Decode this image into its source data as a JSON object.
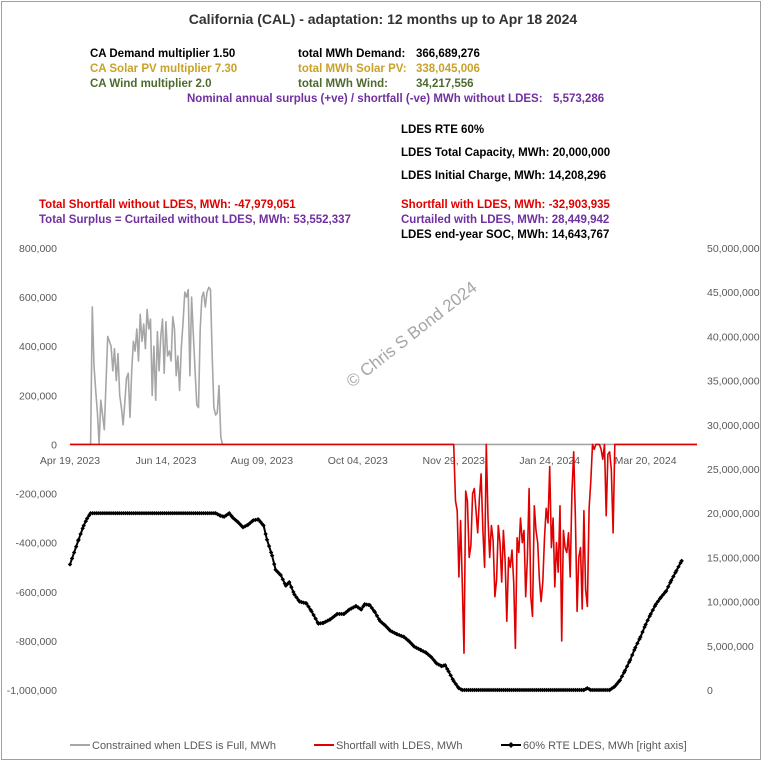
{
  "title": "California (CAL) - adaptation:  12 months up to  Apr 18 2024",
  "info": {
    "demand_mult": {
      "label": "CA Demand multiplier  1.50",
      "color": "#000000"
    },
    "solar_mult": {
      "label": "CA Solar PV multiplier  7.30",
      "color": "#C9A227"
    },
    "wind_mult": {
      "label": "CA Wind multiplier  2.0",
      "color": "#4E6B2E"
    },
    "demand_total": {
      "label": "total MWh Demand:",
      "value": "366,689,276",
      "color": "#000000"
    },
    "solar_total": {
      "label": "total MWh Solar PV:",
      "value": "338,045,006",
      "color": "#C9A227"
    },
    "wind_total": {
      "label": "total MWh Wind:",
      "value": "34,217,556",
      "color": "#4E6B2E"
    },
    "nominal_surplus": {
      "label": "Nominal annual surplus (+ve) / shortfall (-ve) MWh without LDES:",
      "value": "5,573,286",
      "color": "#7030A0"
    },
    "ldes_rte": "LDES RTE 60%",
    "ldes_capacity": "LDES Total Capacity, MWh:  20,000,000",
    "ldes_initial": "LDES Initial Charge, MWh:  14,208,296",
    "shortfall_without": {
      "label": "Total Shortfall without LDES, MWh: -47,979,051",
      "color": "#E00000"
    },
    "surplus_without": {
      "label": "Total Surplus = Curtailed without LDES, MWh: 53,552,337",
      "color": "#7030A0"
    },
    "shortfall_with": {
      "label": "Shortfall with LDES, MWh: -32,903,935",
      "color": "#E00000"
    },
    "curtailed_with": {
      "label": "Curtailed with LDES, MWh: 28,449,942",
      "color": "#7030A0"
    },
    "end_soc": {
      "label": "LDES end-year SOC, MWh: 14,643,767",
      "color": "#000000"
    }
  },
  "watermark": "© Chris S Bond  2024",
  "legend": [
    {
      "label": "Constrained when LDES is Full, MWh",
      "color": "#A6A6A6"
    },
    {
      "label": "Shortfall with LDES, MWh",
      "color": "#E00000"
    },
    {
      "label": "60%  RTE LDES, MWh [right axis]",
      "color": "#000000"
    }
  ],
  "chart_data": {
    "type": "line",
    "x_unit": "day",
    "x_range": [
      "2023-04-19",
      "2024-04-18"
    ],
    "x_tick_labels": [
      "Apr 19, 2023",
      "Jun 14, 2023",
      "Aug 09, 2023",
      "Oct 04, 2023",
      "Nov 29, 2023",
      "Jan 24, 2024",
      "Mar 20, 2024"
    ],
    "y_left_ticks": [
      "800,000",
      "600,000",
      "400,000",
      "200,000",
      "0",
      "-200,000",
      "-400,000",
      "-600,000",
      "-800,000",
      "-1,000,000"
    ],
    "y_right_ticks": [
      "50,000,000",
      "45,000,000",
      "40,000,000",
      "35,000,000",
      "30,000,000",
      "25,000,000",
      "20,000,000",
      "15,000,000",
      "10,000,000",
      "5,000,000",
      "0"
    ],
    "y_left_range": [
      -1000000,
      800000
    ],
    "y_right_range": [
      0,
      50000000
    ],
    "series": [
      {
        "name": "Constrained when LDES is Full, MWh",
        "axis": "left",
        "color": "#A6A6A6",
        "points": [
          [
            0,
            0
          ],
          [
            12,
            0
          ],
          [
            13,
            560000
          ],
          [
            14,
            320000
          ],
          [
            15,
            220000
          ],
          [
            16,
            130000
          ],
          [
            17,
            0
          ],
          [
            18,
            180000
          ],
          [
            20,
            60000
          ],
          [
            21,
            250000
          ],
          [
            22,
            440000
          ],
          [
            24,
            400000
          ],
          [
            25,
            300000
          ],
          [
            26,
            390000
          ],
          [
            27,
            260000
          ],
          [
            28,
            370000
          ],
          [
            29,
            200000
          ],
          [
            30,
            150000
          ],
          [
            31,
            80000
          ],
          [
            32,
            170000
          ],
          [
            33,
            270000
          ],
          [
            34,
            290000
          ],
          [
            35,
            110000
          ],
          [
            36,
            300000
          ],
          [
            37,
            420000
          ],
          [
            38,
            380000
          ],
          [
            39,
            470000
          ],
          [
            40,
            340000
          ],
          [
            41,
            530000
          ],
          [
            42,
            420000
          ],
          [
            43,
            490000
          ],
          [
            44,
            390000
          ],
          [
            45,
            550000
          ],
          [
            46,
            470000
          ],
          [
            47,
            510000
          ],
          [
            48,
            200000
          ],
          [
            49,
            400000
          ],
          [
            50,
            180000
          ],
          [
            51,
            460000
          ],
          [
            52,
            300000
          ],
          [
            53,
            440000
          ],
          [
            54,
            510000
          ],
          [
            55,
            290000
          ],
          [
            56,
            500000
          ],
          [
            57,
            360000
          ],
          [
            58,
            380000
          ],
          [
            59,
            340000
          ],
          [
            60,
            520000
          ],
          [
            61,
            470000
          ],
          [
            62,
            280000
          ],
          [
            63,
            360000
          ],
          [
            64,
            220000
          ],
          [
            65,
            400000
          ],
          [
            66,
            500000
          ],
          [
            67,
            620000
          ],
          [
            68,
            600000
          ],
          [
            69,
            630000
          ],
          [
            70,
            280000
          ],
          [
            71,
            600000
          ],
          [
            72,
            450000
          ],
          [
            73,
            300000
          ],
          [
            74,
            160000
          ],
          [
            75,
            150000
          ],
          [
            76,
            470000
          ],
          [
            77,
            600000
          ],
          [
            78,
            620000
          ],
          [
            79,
            560000
          ],
          [
            80,
            620000
          ],
          [
            81,
            640000
          ],
          [
            82,
            630000
          ],
          [
            83,
            360000
          ],
          [
            84,
            150000
          ],
          [
            85,
            120000
          ],
          [
            86,
            130000
          ],
          [
            87,
            240000
          ],
          [
            88,
            30000
          ],
          [
            89,
            0
          ],
          [
            366,
            0
          ]
        ]
      },
      {
        "name": "Shortfall with LDES, MWh",
        "axis": "left",
        "color": "#E00000",
        "points": [
          [
            0,
            0
          ],
          [
            224,
            0
          ],
          [
            225,
            -230000
          ],
          [
            226,
            -270000
          ],
          [
            227,
            -540000
          ],
          [
            228,
            -310000
          ],
          [
            229,
            -570000
          ],
          [
            230,
            -850000
          ],
          [
            231,
            -190000
          ],
          [
            232,
            -230000
          ],
          [
            233,
            -460000
          ],
          [
            234,
            -410000
          ],
          [
            235,
            -200000
          ],
          [
            236,
            -180000
          ],
          [
            237,
            -270000
          ],
          [
            238,
            -360000
          ],
          [
            239,
            -220000
          ],
          [
            240,
            -120000
          ],
          [
            241,
            -350000
          ],
          [
            242,
            -500000
          ],
          [
            243,
            0
          ],
          [
            244,
            -300000
          ],
          [
            245,
            -460000
          ],
          [
            246,
            -330000
          ],
          [
            247,
            -390000
          ],
          [
            248,
            -620000
          ],
          [
            249,
            -550000
          ],
          [
            250,
            -330000
          ],
          [
            251,
            -400000
          ],
          [
            252,
            -560000
          ],
          [
            253,
            -350000
          ],
          [
            254,
            -470000
          ],
          [
            255,
            -720000
          ],
          [
            256,
            -460000
          ],
          [
            257,
            -500000
          ],
          [
            258,
            -430000
          ],
          [
            259,
            -560000
          ],
          [
            260,
            -830000
          ],
          [
            261,
            -380000
          ],
          [
            262,
            -440000
          ],
          [
            263,
            -300000
          ],
          [
            264,
            -400000
          ],
          [
            265,
            -350000
          ],
          [
            266,
            -620000
          ],
          [
            267,
            -460000
          ],
          [
            268,
            -180000
          ],
          [
            269,
            -620000
          ],
          [
            270,
            -700000
          ],
          [
            271,
            -250000
          ],
          [
            272,
            -350000
          ],
          [
            273,
            -400000
          ],
          [
            274,
            -550000
          ],
          [
            275,
            -640000
          ],
          [
            276,
            -560000
          ],
          [
            277,
            -380000
          ],
          [
            278,
            -260000
          ],
          [
            279,
            -320000
          ],
          [
            280,
            -90000
          ],
          [
            281,
            -420000
          ],
          [
            282,
            -300000
          ],
          [
            283,
            -580000
          ],
          [
            284,
            -400000
          ],
          [
            285,
            -520000
          ],
          [
            286,
            -250000
          ],
          [
            287,
            -800000
          ],
          [
            288,
            -350000
          ],
          [
            289,
            -420000
          ],
          [
            290,
            -440000
          ],
          [
            291,
            -360000
          ],
          [
            292,
            -540000
          ],
          [
            293,
            -200000
          ],
          [
            294,
            -30000
          ],
          [
            295,
            -300000
          ],
          [
            296,
            -680000
          ],
          [
            297,
            -460000
          ],
          [
            298,
            -420000
          ],
          [
            299,
            -670000
          ],
          [
            300,
            -270000
          ],
          [
            301,
            -590000
          ],
          [
            302,
            -660000
          ],
          [
            303,
            -260000
          ],
          [
            304,
            -150000
          ],
          [
            305,
            0
          ],
          [
            306,
            -20000
          ],
          [
            307,
            0
          ],
          [
            308,
            0
          ],
          [
            309,
            0
          ],
          [
            310,
            -20000
          ],
          [
            311,
            -60000
          ],
          [
            312,
            0
          ],
          [
            313,
            -290000
          ],
          [
            314,
            -40000
          ],
          [
            315,
            -30000
          ],
          [
            316,
            -100000
          ],
          [
            317,
            -360000
          ],
          [
            318,
            0
          ],
          [
            366,
            0
          ]
        ]
      },
      {
        "name": "60%  RTE LDES, MWh [right axis]",
        "axis": "right",
        "color": "#000000",
        "points": [
          [
            0,
            14208296
          ],
          [
            5,
            17000000
          ],
          [
            8,
            18600000
          ],
          [
            10,
            19400000
          ],
          [
            12,
            20000000
          ],
          [
            60,
            20000000
          ],
          [
            85,
            20000000
          ],
          [
            88,
            19700000
          ],
          [
            90,
            19600000
          ],
          [
            93,
            20000000
          ],
          [
            95,
            19500000
          ],
          [
            98,
            19000000
          ],
          [
            101,
            18400000
          ],
          [
            104,
            18700000
          ],
          [
            107,
            19200000
          ],
          [
            110,
            19300000
          ],
          [
            113,
            18600000
          ],
          [
            115,
            17000000
          ],
          [
            118,
            15200000
          ],
          [
            120,
            13600000
          ],
          [
            123,
            13000000
          ],
          [
            126,
            11800000
          ],
          [
            128,
            12200000
          ],
          [
            131,
            10800000
          ],
          [
            134,
            10000000
          ],
          [
            138,
            9800000
          ],
          [
            141,
            8900000
          ],
          [
            145,
            7500000
          ],
          [
            148,
            7600000
          ],
          [
            152,
            8000000
          ],
          [
            156,
            8600000
          ],
          [
            160,
            8600000
          ],
          [
            163,
            9100000
          ],
          [
            167,
            9500000
          ],
          [
            170,
            9100000
          ],
          [
            172,
            9700000
          ],
          [
            175,
            9600000
          ],
          [
            178,
            8800000
          ],
          [
            181,
            7800000
          ],
          [
            184,
            7300000
          ],
          [
            187,
            6700000
          ],
          [
            191,
            6300000
          ],
          [
            195,
            6000000
          ],
          [
            198,
            5500000
          ],
          [
            201,
            4900000
          ],
          [
            205,
            4500000
          ],
          [
            208,
            4200000
          ],
          [
            211,
            3700000
          ],
          [
            214,
            3000000
          ],
          [
            217,
            2700000
          ],
          [
            219,
            2800000
          ],
          [
            221,
            2100000
          ],
          [
            224,
            1000000
          ],
          [
            227,
            200000
          ],
          [
            229,
            0
          ],
          [
            300,
            0
          ],
          [
            302,
            200000
          ],
          [
            304,
            0
          ],
          [
            315,
            0
          ],
          [
            318,
            400000
          ],
          [
            321,
            1100000
          ],
          [
            324,
            2200000
          ],
          [
            327,
            3400000
          ],
          [
            330,
            4800000
          ],
          [
            333,
            6000000
          ],
          [
            336,
            7400000
          ],
          [
            339,
            8600000
          ],
          [
            342,
            9700000
          ],
          [
            345,
            10500000
          ],
          [
            348,
            11200000
          ],
          [
            351,
            12400000
          ],
          [
            354,
            13500000
          ],
          [
            357,
            14600000
          ],
          [
            358,
            14643767
          ]
        ]
      }
    ]
  }
}
